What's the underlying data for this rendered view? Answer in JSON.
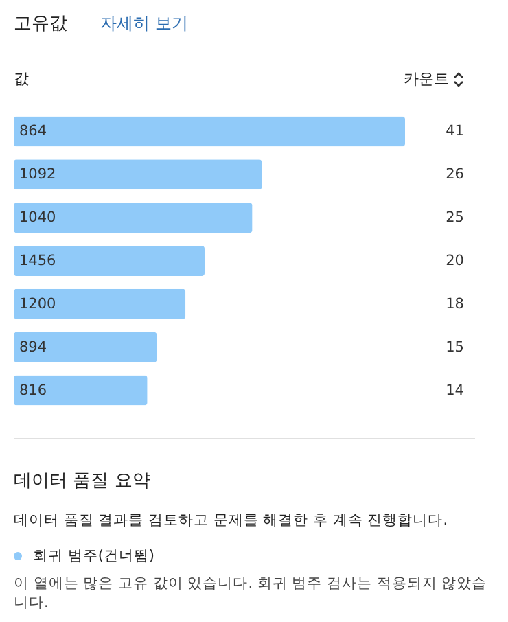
{
  "chart_data": {
    "type": "bar",
    "orientation": "horizontal",
    "title": "고유값",
    "subtitle": "자세히 보기",
    "ylabel": "값",
    "xlabel": "카운트",
    "categories": [
      "864",
      "1092",
      "1040",
      "1456",
      "1200",
      "894",
      "816"
    ],
    "values": [
      41,
      26,
      25,
      20,
      18,
      15,
      14
    ],
    "color": "#90caf9",
    "data_labels": true,
    "annotations": [
      "데이터 품질 요약",
      "데이터 품질 결과를 검토하고 문제를 해결한 후 계속 진행합니다.",
      "회귀 범주(건너뜀)",
      "이 열에는 많은 고유 값이 있습니다. 회귀 범주 검사는 적용되지 않았습니다."
    ]
  }
}
